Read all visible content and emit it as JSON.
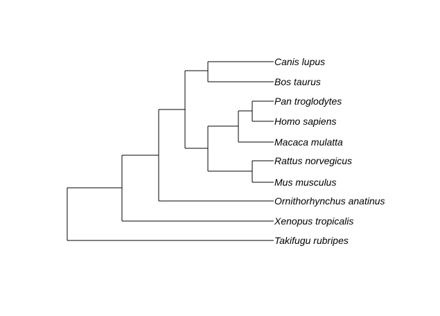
{
  "tree": {
    "taxa": [
      "Canis lupus",
      "Bos taurus",
      "Pan troglodytes",
      "Homo sapiens",
      "Macaca mulatta",
      "Rattus norvegicus",
      "Mus musculus",
      "Ornithorhynchus anatinus",
      "Xenopus tropicalis",
      "Takifugu rubripes"
    ]
  }
}
